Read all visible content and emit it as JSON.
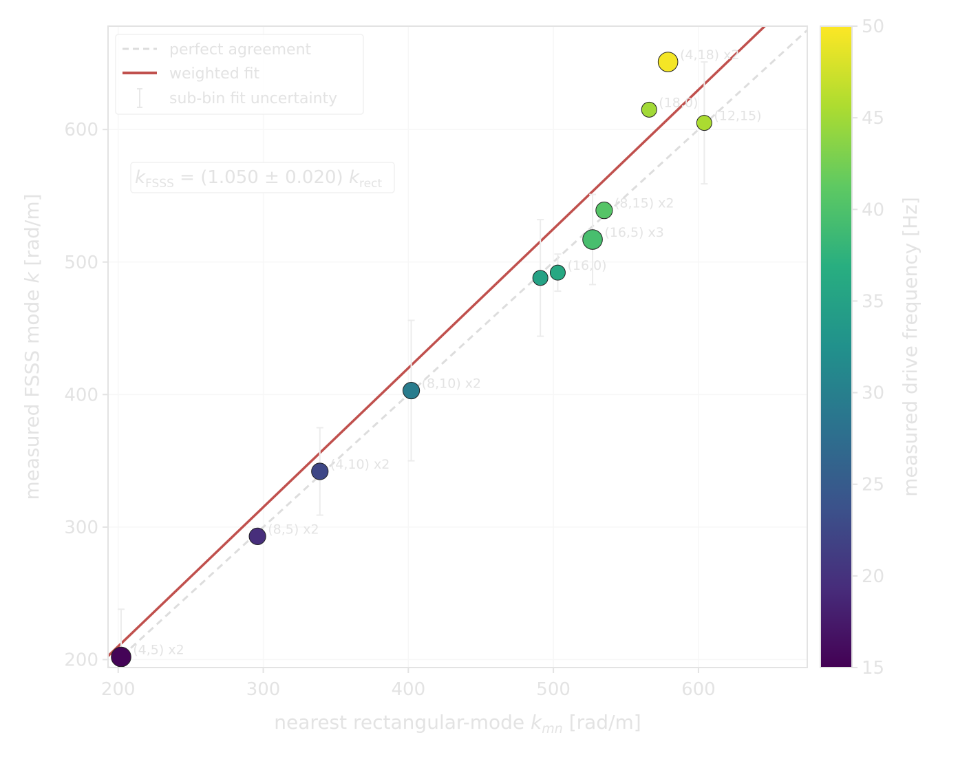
{
  "chart_data": {
    "type": "scatter",
    "title": "",
    "xlabel_prefix": "nearest rectangular-mode ",
    "xlabel_symbol": "k",
    "xlabel_sub": "mn",
    "xlabel_suffix": " [rad/m]",
    "ylabel_prefix": "measured FSSS mode ",
    "ylabel_symbol": "k",
    "ylabel_suffix": " [rad/m]",
    "xlim": [
      193,
      675
    ],
    "ylim": [
      194,
      678
    ],
    "xticks": [
      200,
      300,
      400,
      500,
      600
    ],
    "yticks": [
      200,
      300,
      400,
      500,
      600
    ],
    "grid": true,
    "legend": {
      "placement": "top-left",
      "entries": [
        {
          "label": "perfect agreement",
          "style": "dashed",
          "color": "#dddddd"
        },
        {
          "label": "weighted fit",
          "style": "solid",
          "color": "#c0504d"
        },
        {
          "label": "sub-bin fit uncertainty",
          "style": "errorbar",
          "color": "#e8e8e8"
        }
      ]
    },
    "fit_annotation": {
      "k1": "k",
      "sub1": "FSSS",
      "eq": " = (1.050 ± 0.020) ",
      "k2": "k",
      "sub2": "rect"
    },
    "perfect_agreement": {
      "slope": 1.0
    },
    "weighted_fit": {
      "slope": 1.05,
      "color": "#c0504d"
    },
    "colorbar": {
      "label": "measured drive frequency [Hz]",
      "range": [
        15,
        50
      ],
      "ticks": [
        15,
        20,
        25,
        30,
        35,
        40,
        45,
        50
      ],
      "colormap": "viridis"
    },
    "points": [
      {
        "x": 202,
        "y": 202,
        "freq": 15.3,
        "size": 1.3,
        "label": "(4,5) x2",
        "err": 36
      },
      {
        "x": 296,
        "y": 293,
        "freq": 19.5,
        "size": 1.1,
        "label": "(8,5) x2",
        "err": 0
      },
      {
        "x": 339,
        "y": 342,
        "freq": 22.5,
        "size": 1.1,
        "label": "(4,10) x2",
        "err": 33
      },
      {
        "x": 402,
        "y": 403,
        "freq": 29.5,
        "size": 1.1,
        "label": "(8,10) x2",
        "err": 53
      },
      {
        "x": 491,
        "y": 488,
        "freq": 35.0,
        "size": 1.0,
        "label": "",
        "err": 44
      },
      {
        "x": 503,
        "y": 492,
        "freq": 36.0,
        "size": 1.0,
        "label": "(16,0)",
        "err": 14
      },
      {
        "x": 527,
        "y": 517,
        "freq": 39.5,
        "size": 1.3,
        "label": "(16,5) x3",
        "err": 34
      },
      {
        "x": 535,
        "y": 539,
        "freq": 40.5,
        "size": 1.1,
        "label": "(8,15) x2",
        "err": 0
      },
      {
        "x": 566,
        "y": 615,
        "freq": 45.0,
        "size": 1.0,
        "label": "(18,0)",
        "err": 0
      },
      {
        "x": 579,
        "y": 651,
        "freq": 49.5,
        "size": 1.3,
        "label": "(4,18) x2",
        "err": 0
      },
      {
        "x": 604,
        "y": 605,
        "freq": 45.5,
        "size": 1.0,
        "label": "(12,15)",
        "err": 46
      }
    ]
  }
}
